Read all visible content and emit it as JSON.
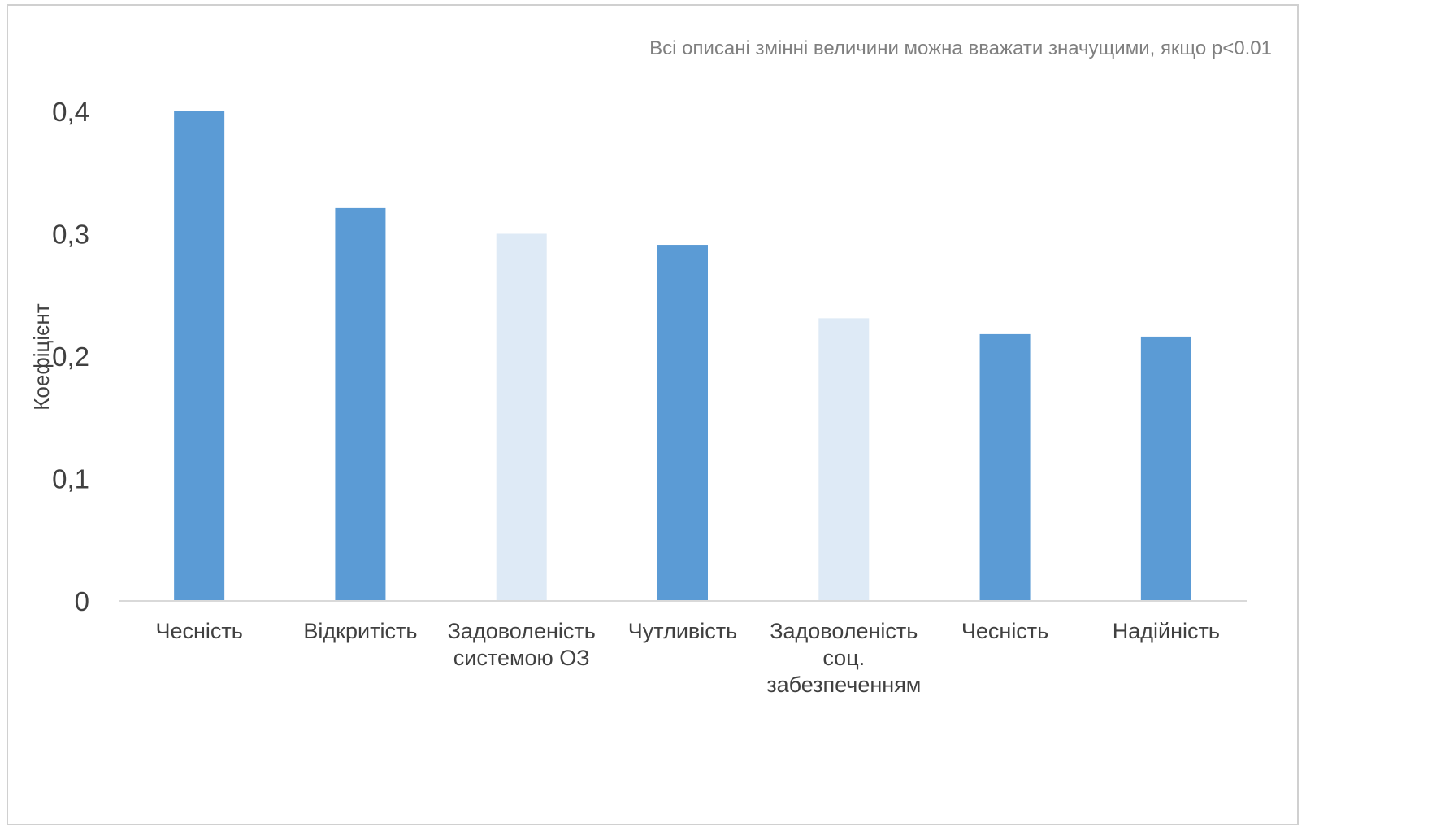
{
  "chart_data": {
    "type": "bar",
    "title": "",
    "note": "Всі описані змінні величини можна вважати значущими, якщо p<0.01",
    "ylabel": "Коефіцієнт",
    "xlabel": "",
    "ylim": [
      0,
      0.4
    ],
    "yticks": [
      {
        "value": 0,
        "label": "0"
      },
      {
        "value": 0.1,
        "label": "0,1"
      },
      {
        "value": 0.2,
        "label": "0,2"
      },
      {
        "value": 0.3,
        "label": "0,3"
      },
      {
        "value": 0.4,
        "label": "0,4"
      }
    ],
    "categories": [
      [
        "Чесність"
      ],
      [
        "Відкритість"
      ],
      [
        "Задоволеність",
        "системою ОЗ"
      ],
      [
        "Чутливість"
      ],
      [
        "Задоволеність",
        "соц.",
        "забезпеченням"
      ],
      [
        "Чесність"
      ],
      [
        "Надійність"
      ]
    ],
    "values": [
      0.4,
      0.321,
      0.3,
      0.291,
      0.231,
      0.218,
      0.216
    ],
    "bar_colors": [
      "#5b9bd5",
      "#5b9bd5",
      "#deeaf6",
      "#5b9bd5",
      "#deeaf6",
      "#5b9bd5",
      "#5b9bd5"
    ],
    "grid": false,
    "legend": "none"
  }
}
